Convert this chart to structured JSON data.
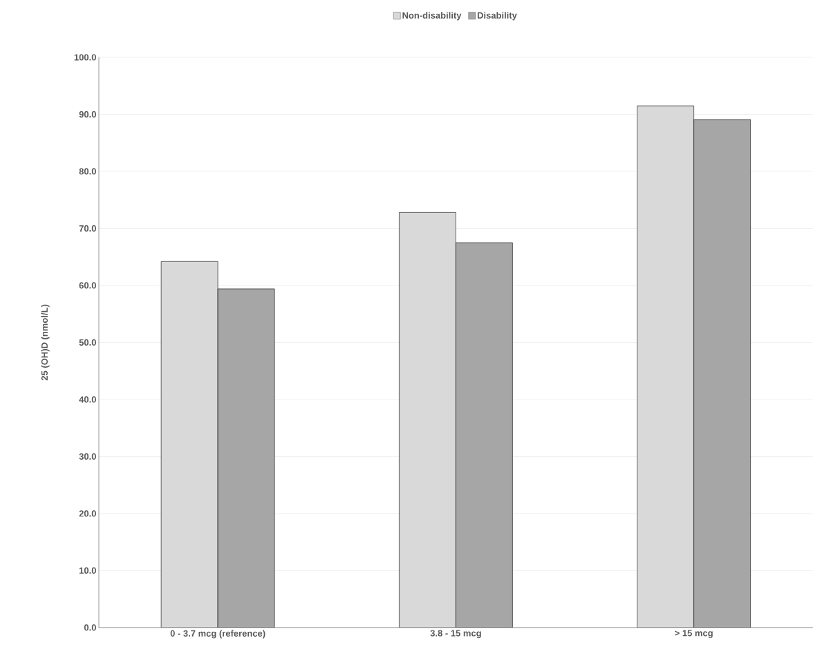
{
  "chart_data": {
    "type": "bar",
    "ylabel": "25 (OH)D (nmol/L)",
    "categories": [
      "0 - 3.7 mcg (reference)",
      "3.8 - 15 mcg",
      "> 15 mcg"
    ],
    "series": [
      {
        "name": "Non-disability",
        "color": "#d9d9d9",
        "values": [
          64.2,
          72.8,
          91.5
        ]
      },
      {
        "name": "Disability",
        "color": "#a6a6a6",
        "values": [
          59.4,
          67.5,
          89.1
        ]
      }
    ],
    "ylim": [
      0,
      100
    ],
    "yticks": [
      {
        "value": 0,
        "label": "0.0"
      },
      {
        "value": 10,
        "label": "10.0"
      },
      {
        "value": 20,
        "label": "20.0"
      },
      {
        "value": 30,
        "label": "30.0"
      },
      {
        "value": 40,
        "label": "40.0"
      },
      {
        "value": 50,
        "label": "50.0"
      },
      {
        "value": 60,
        "label": "60.0"
      },
      {
        "value": 70,
        "label": "70.0"
      },
      {
        "value": 80,
        "label": "80.0"
      },
      {
        "value": 90,
        "label": "90.0"
      },
      {
        "value": 100,
        "label": "100.0"
      }
    ],
    "grid": "y",
    "legend": "top"
  }
}
